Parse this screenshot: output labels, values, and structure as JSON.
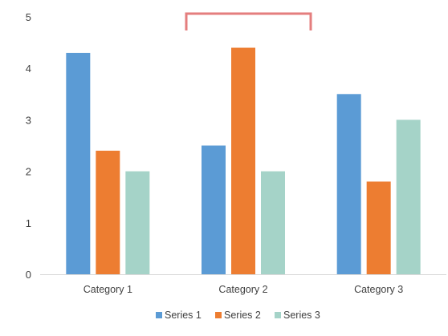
{
  "chart_data": {
    "type": "bar",
    "categories": [
      "Category 1",
      "Category 2",
      "Category 3"
    ],
    "series": [
      {
        "name": "Series 1",
        "values": [
          4.3,
          2.5,
          3.5
        ],
        "color": "#5b9bd5"
      },
      {
        "name": "Series 2",
        "values": [
          2.4,
          4.4,
          1.8
        ],
        "color": "#ed7d31"
      },
      {
        "name": "Series 3",
        "values": [
          2.0,
          2.0,
          3.0
        ],
        "color": "#a5d3c8"
      }
    ],
    "ylim": [
      0,
      5
    ],
    "yticks": [
      "0",
      "1",
      "2",
      "3",
      "4",
      "5"
    ],
    "grid": false,
    "legend": "bottom",
    "annotation": {
      "type": "bracket",
      "color": "#e47e7e"
    }
  }
}
